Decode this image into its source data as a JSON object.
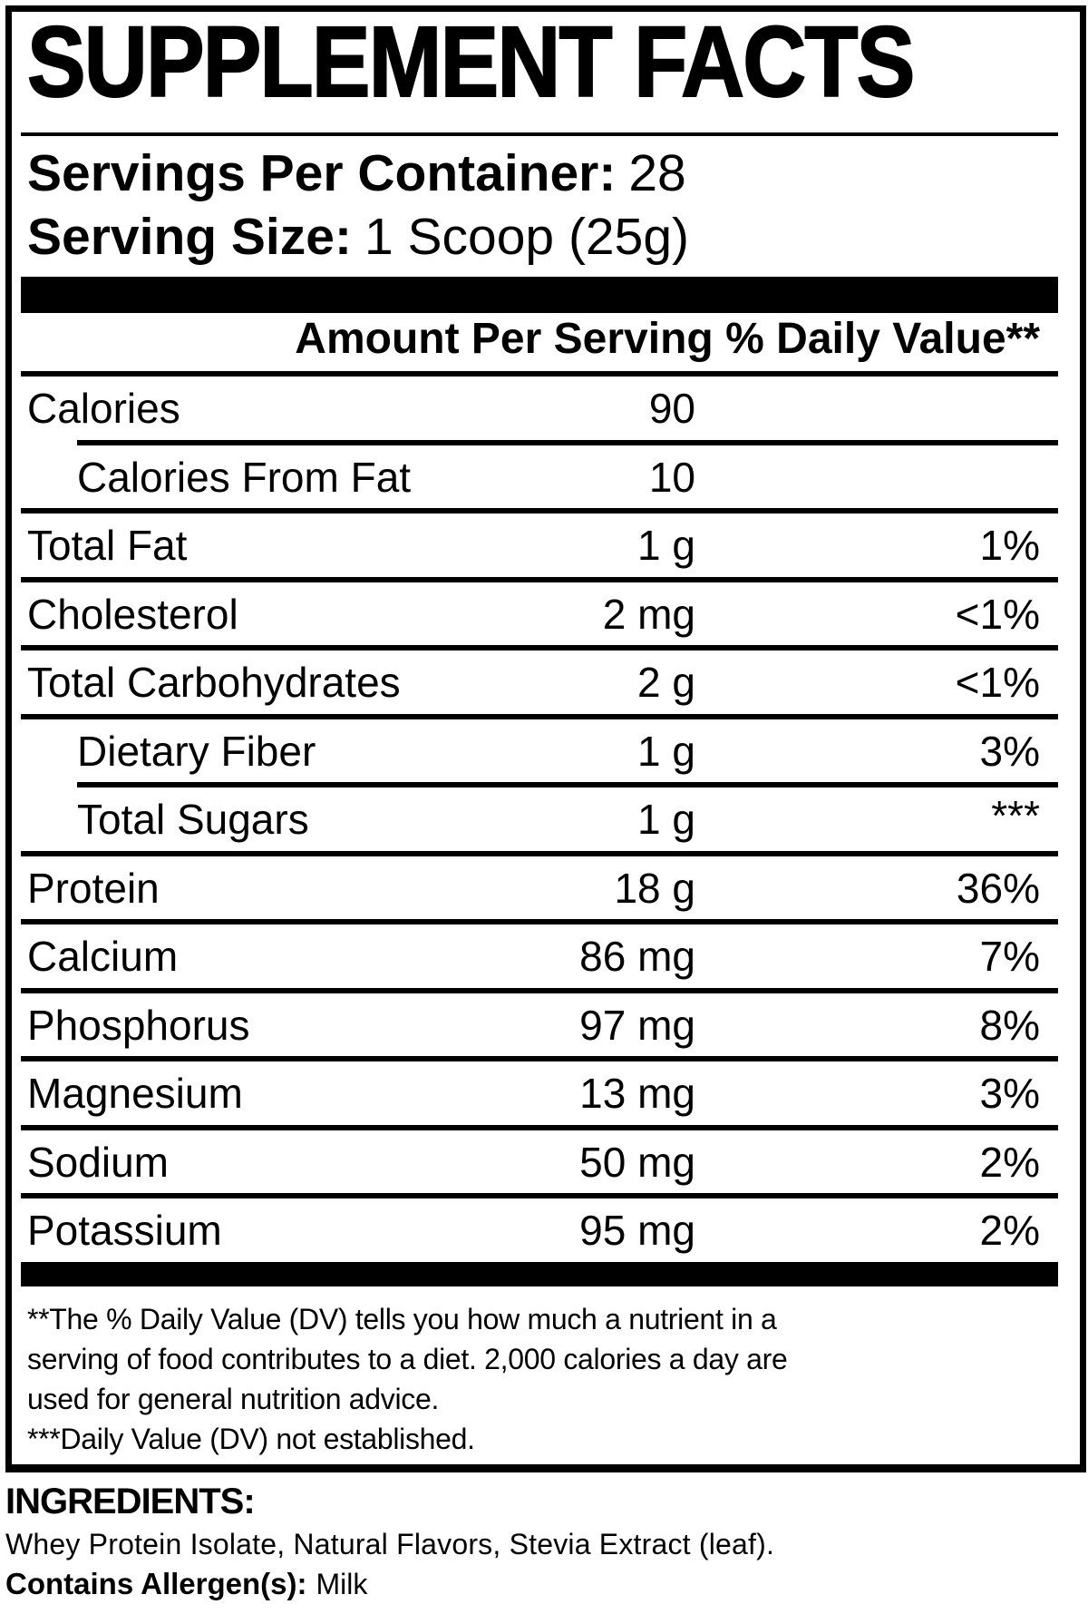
{
  "title": "SUPPLEMENT FACTS",
  "serving_info": [
    {
      "label": "Servings Per Container:",
      "value": "28"
    },
    {
      "label": "Serving Size:",
      "value": "1 Scoop (25g)"
    }
  ],
  "table": {
    "amount_header": "Amount Per Serving",
    "dv_header": "% Daily Value**",
    "rows": [
      {
        "label": "Calories",
        "amount": "90",
        "dv": ""
      },
      {
        "label": "Calories From Fat",
        "amount": "10",
        "dv": ""
      },
      {
        "label": "Total Fat",
        "amount": "1 g",
        "dv": "1%"
      },
      {
        "label": "Cholesterol",
        "amount": "2 mg",
        "dv": "<1%"
      },
      {
        "label": "Total Carbohydrates",
        "amount": "2 g",
        "dv": "<1%"
      },
      {
        "label": "Dietary Fiber",
        "amount": "1 g",
        "dv": "3%"
      },
      {
        "label": "Total Sugars",
        "amount": "1 g",
        "dv": "***"
      },
      {
        "label": "Protein",
        "amount": "18 g",
        "dv": "36%"
      },
      {
        "label": "Calcium",
        "amount": "86 mg",
        "dv": "7%"
      },
      {
        "label": "Phosphorus",
        "amount": "97 mg",
        "dv": "8%"
      },
      {
        "label": "Magnesium",
        "amount": "13 mg",
        "dv": "3%"
      },
      {
        "label": "Sodium",
        "amount": "50 mg",
        "dv": "2%"
      },
      {
        "label": "Potassium",
        "amount": "95 mg",
        "dv": "2%"
      }
    ]
  },
  "footnotes": [
    "**The % Daily Value (DV) tells you how much a nutrient in a",
    "serving of food contributes to a diet. 2,000 calories a day are",
    "used for general nutrition advice.",
    "***Daily Value (DV) not established."
  ],
  "ingredients": {
    "heading": "INGREDIENTS:",
    "list": "Whey Protein Isolate, Natural Flavors, Stevia Extract (leaf).",
    "allergen_label": "Contains Allergen(s):",
    "allergen_value": "Milk"
  },
  "colors": {
    "ink": "#000000",
    "paper": "#ffffff"
  }
}
